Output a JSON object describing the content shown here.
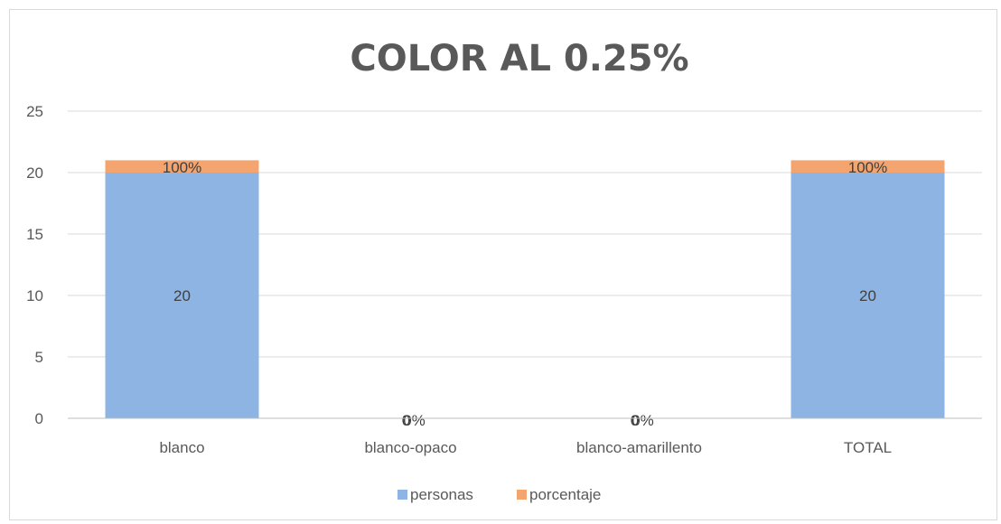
{
  "chart_data": {
    "type": "bar",
    "stacked": true,
    "title": "COLOR AL 0.25%",
    "categories": [
      "blanco",
      "blanco-opaco",
      "blanco-amarillento",
      "TOTAL"
    ],
    "series": [
      {
        "name": "personas",
        "values": [
          20,
          0,
          0,
          20
        ],
        "labels": [
          "20",
          "0",
          "0",
          "20"
        ],
        "color": "#8db4e2"
      },
      {
        "name": "porcentaje",
        "values": [
          1,
          0,
          0,
          1
        ],
        "labels": [
          "100%",
          "0%",
          "0%",
          "100%"
        ],
        "color": "#f4a46e"
      }
    ],
    "ylim": [
      0,
      25
    ],
    "yticks": [
      0,
      5,
      10,
      15,
      20,
      25
    ],
    "grid": true,
    "legend": "bottom"
  }
}
